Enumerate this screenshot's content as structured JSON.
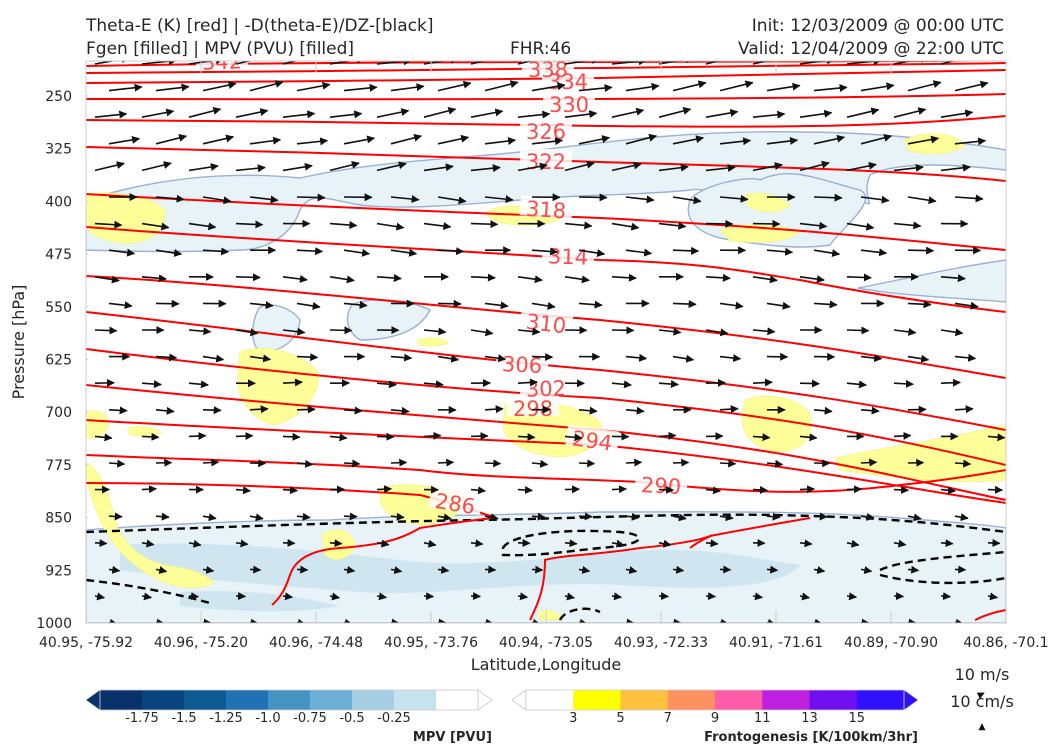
{
  "header": {
    "title_left_1": "Theta-E (K) [red] | -D(theta-E)/DZ-[black]",
    "title_left_2": "Fgen [filled] | MPV (PVU) [filled]",
    "fhr": "FHR:46",
    "init": "Init: 12/03/2009 @ 00:00 UTC",
    "valid": "Valid: 12/04/2009 @ 22:00 UTC"
  },
  "chart_data": {
    "type": "cross-section",
    "xlabel": "Latitude,Longitude",
    "ylabel": "Pressure [hPa]",
    "x_ticks": [
      "40.95, -75.92",
      "40.96, -75.20",
      "40.96, -74.48",
      "40.95, -73.76",
      "40.94, -73.05",
      "40.93, -72.33",
      "40.91, -71.61",
      "40.89, -70.90",
      "40.86, -70.1"
    ],
    "y_ticks": [
      250,
      325,
      400,
      475,
      550,
      625,
      700,
      775,
      850,
      925,
      1000
    ],
    "ylim": [
      1000,
      210
    ],
    "theta_e_contours": [
      {
        "label": "342",
        "y": [
          213,
          213,
          213
        ]
      },
      {
        "label": "338",
        "y": [
          225,
          222,
          218,
          214
        ]
      },
      {
        "label": "334",
        "y": [
          238,
          236,
          232,
          226
        ]
      },
      {
        "label": "330",
        "y": [
          257,
          258,
          257,
          251
        ]
      },
      {
        "label": "326",
        "y": [
          280,
          285,
          285,
          283
        ]
      },
      {
        "label": "322",
        "y": [
          310,
          318,
          330,
          348
        ]
      },
      {
        "label": "318",
        "y": [
          360,
          372,
          390,
          415
        ]
      },
      {
        "label": "314",
        "y": [
          410,
          438,
          470,
          510
        ]
      },
      {
        "label": "310",
        "y": [
          495,
          520,
          550,
          585
        ]
      },
      {
        "label": "306",
        "y": [
          565,
          590,
          615,
          650
        ]
      },
      {
        "label": "302",
        "y": [
          620,
          645,
          670,
          700
        ]
      },
      {
        "label": "298",
        "y": [
          665,
          690,
          715,
          745
        ]
      },
      {
        "label": "294",
        "y": [
          705,
          730,
          760,
          795
        ]
      },
      {
        "label": "290",
        "y": [
          740,
          770,
          800,
          835
        ]
      },
      {
        "label": "286",
        "y": [
          790,
          810
        ]
      }
    ],
    "mpv_colorbar": {
      "label": "MPV [PVU]",
      "ticks": [
        "-1.75",
        "-1.5",
        "-1.25",
        "-1.0",
        "-0.75",
        "-0.5",
        "-0.25"
      ],
      "colors": [
        "#08306b",
        "#08457e",
        "#0c5a92",
        "#2171b5",
        "#4393c3",
        "#6baed6",
        "#a6cee3",
        "#c6e2ef",
        "#ffffff"
      ]
    },
    "fgen_colorbar": {
      "label": "Frontogenesis [K/100km/3hr]",
      "ticks": [
        "3",
        "5",
        "7",
        "9",
        "11",
        "13",
        "15"
      ],
      "colors": [
        "#ffffff",
        "#ffff00",
        "#ffc040",
        "#ff9060",
        "#ff5ca8",
        "#c020e0",
        "#7010f0",
        "#3010ff"
      ]
    },
    "wind_key": {
      "line1": "10 m/s",
      "line2": "10 cm/s"
    }
  },
  "colors": {
    "theta_e": "#ff0000",
    "theta_e_label": "#ff4a4a",
    "mpv_fill": "#dbeef5",
    "mpv_edge": "#9bb1d4",
    "fgen_fill": "#ffff99",
    "arrows": "#111111"
  }
}
